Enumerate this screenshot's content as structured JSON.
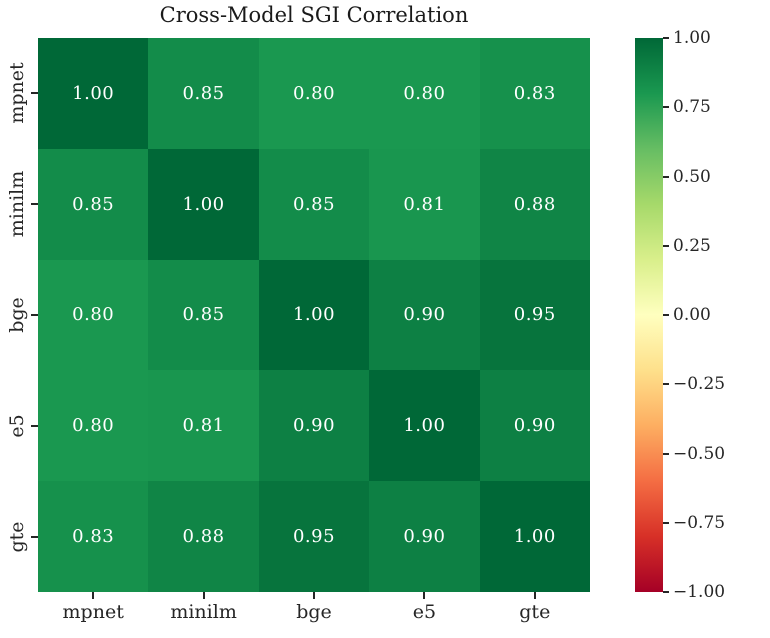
{
  "title": "Cross-Model SGI Correlation",
  "chart_data": {
    "type": "heatmap",
    "title": "Cross-Model SGI Correlation",
    "categories": [
      "mpnet",
      "minilm",
      "bge",
      "e5",
      "gte"
    ],
    "x_tick_labels": [
      "mpnet",
      "minilm",
      "bge",
      "e5",
      "gte"
    ],
    "y_tick_labels": [
      "mpnet",
      "minilm",
      "bge",
      "e5",
      "gte"
    ],
    "matrix": [
      [
        1.0,
        0.85,
        0.8,
        0.8,
        0.83
      ],
      [
        0.85,
        1.0,
        0.85,
        0.81,
        0.88
      ],
      [
        0.8,
        0.85,
        1.0,
        0.9,
        0.95
      ],
      [
        0.8,
        0.81,
        0.9,
        1.0,
        0.9
      ],
      [
        0.83,
        0.88,
        0.95,
        0.9,
        1.0
      ]
    ],
    "vmin": -1.0,
    "vmax": 1.0,
    "value_decimals": 2,
    "annotation_text_color": "#ffffff",
    "tick_color": "#262626",
    "title_color": "#1a1a1a",
    "grid": false,
    "legend": false,
    "colormap": {
      "name": "RdYlGn",
      "stops": [
        [
          0.0,
          "#a50026"
        ],
        [
          0.1,
          "#d73027"
        ],
        [
          0.2,
          "#f46d43"
        ],
        [
          0.3,
          "#fdae61"
        ],
        [
          0.4,
          "#fee08b"
        ],
        [
          0.5,
          "#ffffbf"
        ],
        [
          0.6,
          "#d9ef8b"
        ],
        [
          0.7,
          "#a6d96a"
        ],
        [
          0.8,
          "#66bd63"
        ],
        [
          0.9,
          "#1a9850"
        ],
        [
          1.0,
          "#006837"
        ]
      ]
    },
    "colorbar": {
      "position": "right",
      "tick_values": [
        1.0,
        0.75,
        0.5,
        0.25,
        0.0,
        -0.25,
        -0.5,
        -0.75,
        -1.0
      ],
      "tick_labels": [
        "1.00",
        "0.75",
        "0.50",
        "0.25",
        "0.00",
        "−0.25",
        "−0.50",
        "−0.75",
        "−1.00"
      ]
    }
  }
}
